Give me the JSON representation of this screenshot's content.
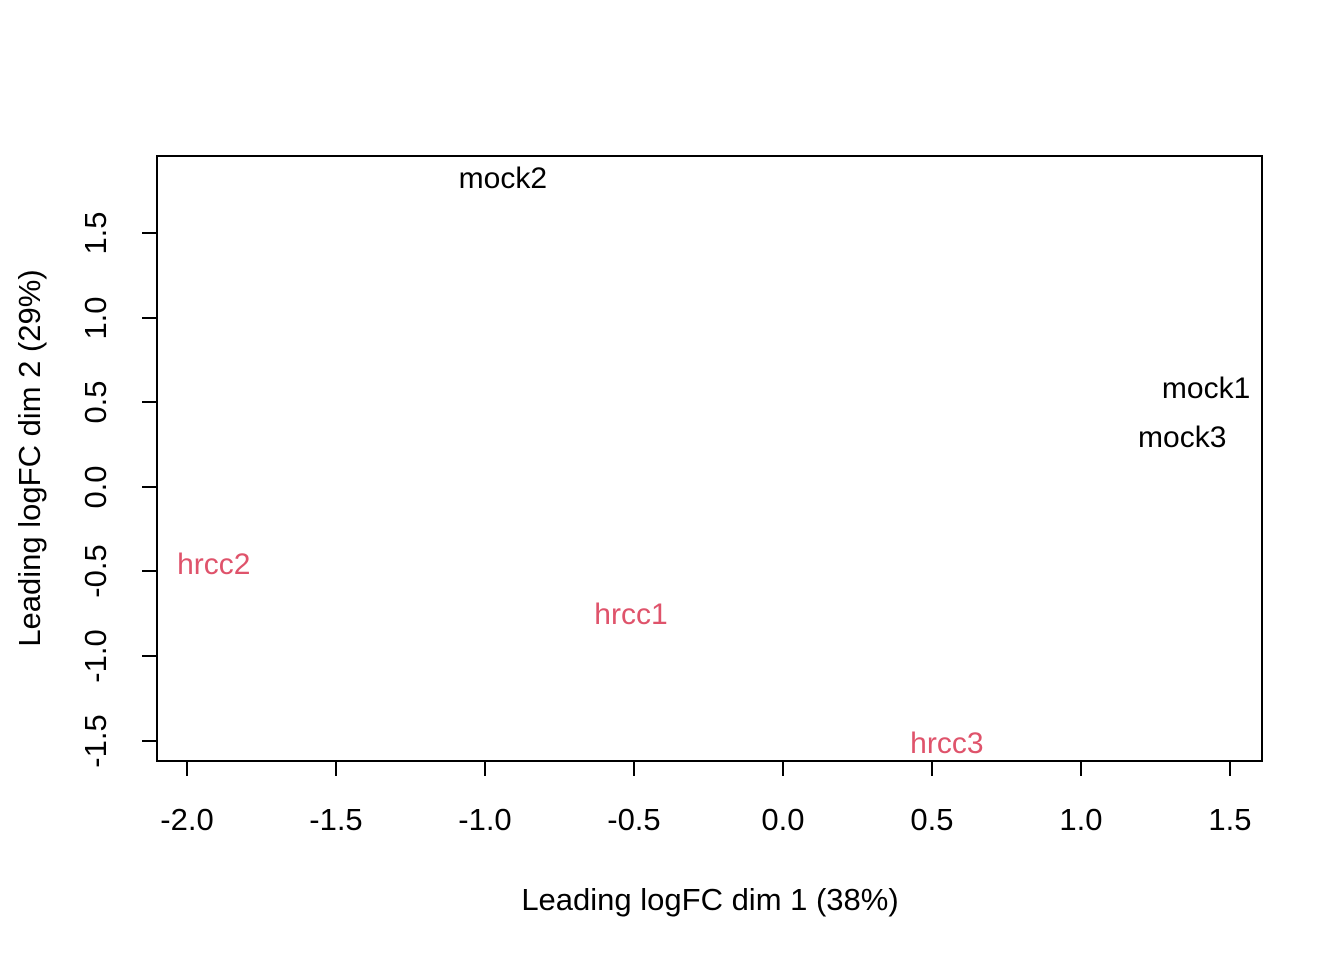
{
  "chart_data": {
    "type": "scatter",
    "subtype": "mds-plot-text-labels",
    "title": "",
    "xlabel": "Leading logFC dim 1 (38%)",
    "ylabel": "Leading logFC dim 2 (29%)",
    "xlim": [
      -2.104,
      1.611
    ],
    "ylim": [
      -1.627,
      1.964
    ],
    "x_ticks": [
      -2.0,
      -1.5,
      -1.0,
      -0.5,
      0.0,
      0.5,
      1.0,
      1.5
    ],
    "x_tick_labels": [
      "-2.0",
      "-1.5",
      "-1.0",
      "-0.5",
      "0.0",
      "0.5",
      "1.0",
      "1.5"
    ],
    "y_ticks": [
      -1.5,
      -1.0,
      -0.5,
      0.0,
      0.5,
      1.0,
      1.5
    ],
    "y_tick_labels": [
      "-1.5",
      "-1.0",
      "-0.5",
      "0.0",
      "0.5",
      "1.0",
      "1.5"
    ],
    "grid": false,
    "legend": "none",
    "frame": "box",
    "background_color": "#ffffff",
    "axis_color": "#000000",
    "series": [
      {
        "name": "mock",
        "color": "#000000",
        "points": [
          {
            "label": "mock2",
            "x": -0.94,
            "y": 1.82
          },
          {
            "label": "mock1",
            "x": 1.42,
            "y": 0.58
          },
          {
            "label": "mock3",
            "x": 1.34,
            "y": 0.29
          }
        ]
      },
      {
        "name": "hrcc",
        "color": "#DF536B",
        "points": [
          {
            "label": "hrcc2",
            "x": -1.91,
            "y": -0.46
          },
          {
            "label": "hrcc1",
            "x": -0.51,
            "y": -0.76
          },
          {
            "label": "hrcc3",
            "x": 0.55,
            "y": -1.52
          }
        ]
      }
    ]
  }
}
